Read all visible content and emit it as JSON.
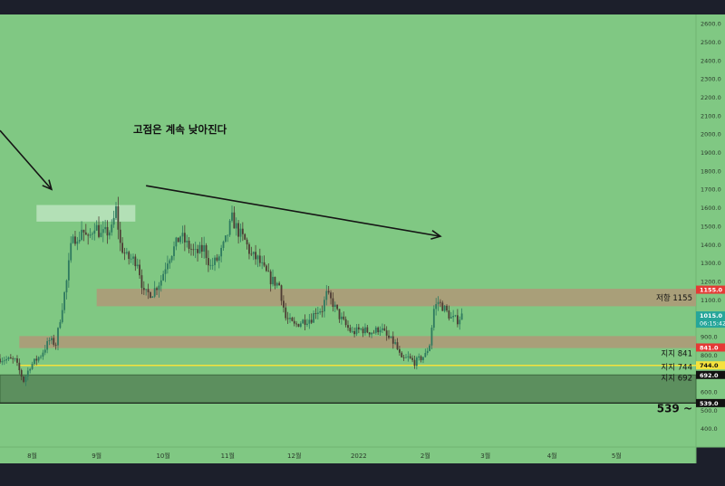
{
  "chart_data": {
    "type": "candlestick",
    "annotation_text": "고점은 계속 낮아진다",
    "colors": {
      "background": "#80c883",
      "frame": "#1c1f2b",
      "candle_up": "#2e7a5f",
      "candle_down": "#4d3b33",
      "resistance_zone": "#b09878",
      "support_zone": "#b09878",
      "deep_support_zone": "#5c8f5e",
      "highlight_box": "#b8e2bb",
      "trend_line": "#151515",
      "price_tag": "#26a69a",
      "tag_red": "#e53935",
      "tag_yellow": "#f5e23c",
      "tag_black": "#111111"
    },
    "y_axis": {
      "min": 300,
      "max": 2650,
      "ticks": [
        400,
        500,
        600,
        700,
        800,
        900,
        1000,
        1100,
        1200,
        1300,
        1400,
        1500,
        1600,
        1700,
        1800,
        1900,
        2000,
        2100,
        2200,
        2300,
        2400,
        2500,
        2600
      ],
      "tick_labels": [
        "400.0",
        "500.0",
        "600.0",
        "700.0",
        "800.0",
        "900.0",
        "1000.0",
        "1100.0",
        "1200.0",
        "1300.0",
        "1400.0",
        "1500.0",
        "1600.0",
        "1700.0",
        "1800.0",
        "1900.0",
        "2000.0",
        "2100.0",
        "2200.0",
        "2300.0",
        "2400.0",
        "2500.0",
        "2600.0"
      ]
    },
    "x_axis": {
      "labels": [
        "8월",
        "9월",
        "10월",
        "11월",
        "12월",
        "2022",
        "2월",
        "3월",
        "4월",
        "5월"
      ],
      "positions": [
        1,
        31,
        62,
        92,
        123,
        153,
        184,
        212,
        243,
        273
      ],
      "start_day": -14,
      "end_day": 310
    },
    "zones": [
      {
        "name": "resistance",
        "label": "저항 1155",
        "low": 1065,
        "high": 1160,
        "start": 31
      },
      {
        "name": "support-841",
        "label": "지지 841",
        "low": 838,
        "high": 903,
        "start": -5
      },
      {
        "name": "support-744",
        "label": "지지 744",
        "low": 744,
        "high": 744,
        "start": -5,
        "line": true
      },
      {
        "name": "support-692",
        "label": "지지 692",
        "low": 541,
        "high": 692,
        "start": -14
      },
      {
        "name": "floor-539",
        "label": "539 ~",
        "low": 539,
        "high": 539,
        "start": -14,
        "line": true
      }
    ],
    "price_tags": [
      {
        "value": 1155,
        "label": "1155.0",
        "style": "red"
      },
      {
        "value": 1015,
        "label": "1015.0",
        "sub": "06:15:42",
        "style": "teal"
      },
      {
        "value": 841,
        "label": "841.0",
        "style": "red"
      },
      {
        "value": 744,
        "label": "744.0",
        "style": "yellow"
      },
      {
        "value": 692,
        "label": "692.0",
        "style": "black"
      },
      {
        "value": 539,
        "label": "539.0",
        "style": "black"
      }
    ],
    "highlight_box": {
      "x_start": 3,
      "x_end": 49,
      "low": 1525,
      "high": 1615
    },
    "trend_lines": [
      {
        "x1": -14,
        "y1": 2020,
        "x2": 10,
        "y2": 1700
      },
      {
        "x1": 54,
        "y1": 1720,
        "x2": 191,
        "y2": 1445
      }
    ],
    "candle_path": [
      [
        -14,
        780
      ],
      [
        -7,
        770
      ],
      [
        -3,
        660
      ],
      [
        0,
        740
      ],
      [
        5,
        800
      ],
      [
        9,
        880
      ],
      [
        12,
        860
      ],
      [
        14,
        1000
      ],
      [
        17,
        1200
      ],
      [
        19,
        1380
      ],
      [
        20,
        1480
      ],
      [
        22,
        1400
      ],
      [
        24,
        1490
      ],
      [
        27,
        1420
      ],
      [
        30,
        1510
      ],
      [
        33,
        1450
      ],
      [
        38,
        1480
      ],
      [
        40,
        1590
      ],
      [
        42,
        1400
      ],
      [
        45,
        1330
      ],
      [
        50,
        1310
      ],
      [
        53,
        1130
      ],
      [
        57,
        1140
      ],
      [
        61,
        1210
      ],
      [
        64,
        1320
      ],
      [
        67,
        1380
      ],
      [
        70,
        1450
      ],
      [
        73,
        1400
      ],
      [
        77,
        1350
      ],
      [
        81,
        1380
      ],
      [
        84,
        1280
      ],
      [
        88,
        1330
      ],
      [
        91,
        1420
      ],
      [
        94,
        1540
      ],
      [
        97,
        1470
      ],
      [
        100,
        1420
      ],
      [
        103,
        1340
      ],
      [
        106,
        1320
      ],
      [
        109,
        1260
      ],
      [
        112,
        1210
      ],
      [
        116,
        1180
      ],
      [
        119,
        1000
      ],
      [
        123,
        960
      ],
      [
        127,
        985
      ],
      [
        131,
        1000
      ],
      [
        133,
        1040
      ],
      [
        136,
        1050
      ],
      [
        138,
        1130
      ],
      [
        141,
        1080
      ],
      [
        144,
        1010
      ],
      [
        147,
        960
      ],
      [
        150,
        920
      ],
      [
        154,
        940
      ],
      [
        157,
        930
      ],
      [
        160,
        925
      ],
      [
        163,
        950
      ],
      [
        166,
        900
      ],
      [
        170,
        860
      ],
      [
        173,
        770
      ],
      [
        176,
        785
      ],
      [
        179,
        760
      ],
      [
        184,
        800
      ],
      [
        186,
        860
      ],
      [
        188,
        1050
      ],
      [
        190,
        1090
      ],
      [
        193,
        1050
      ],
      [
        196,
        1000
      ],
      [
        199,
        990
      ],
      [
        201,
        1015
      ]
    ]
  }
}
